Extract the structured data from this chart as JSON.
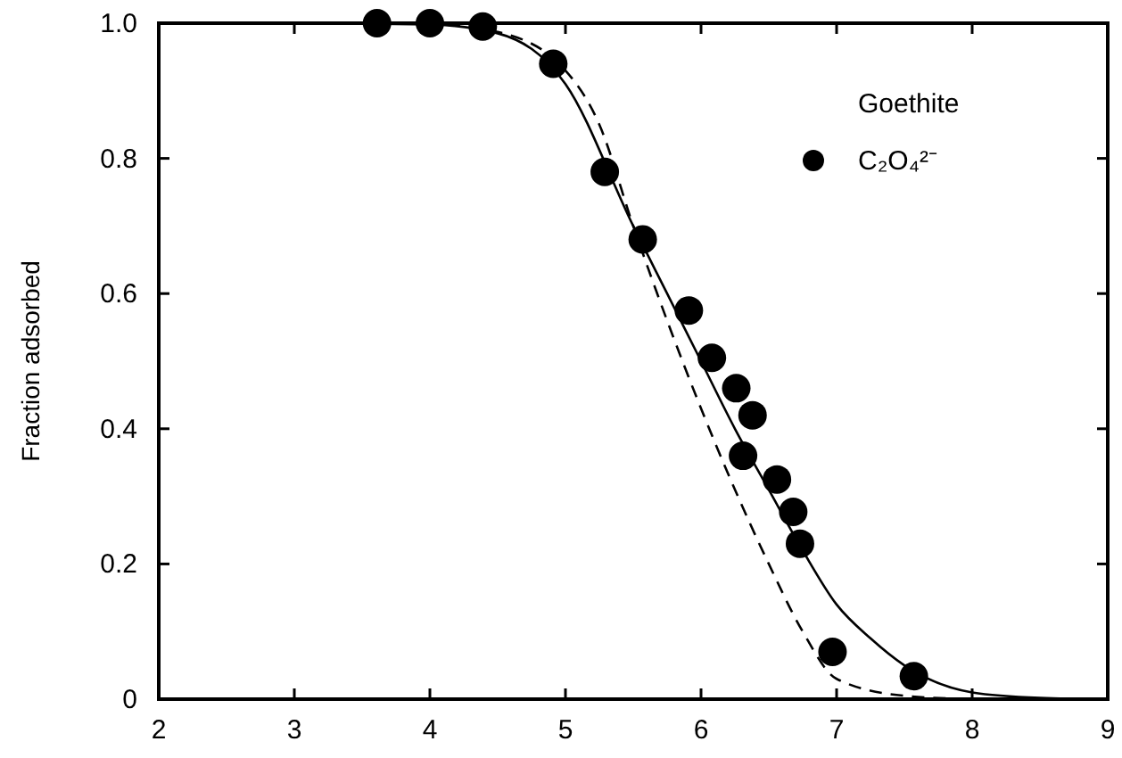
{
  "chart_data": {
    "type": "scatter",
    "ylabel": "Fraction adsorbed",
    "legend_title": "Goethite",
    "legend": "top right",
    "grid": false,
    "xlim": [
      2,
      9
    ],
    "xticks": [
      2,
      3,
      4,
      5,
      6,
      7,
      8,
      9
    ],
    "ylim": [
      0,
      1
    ],
    "yticks": [
      0,
      {
        "value": 0.2,
        "label": "0.2"
      },
      {
        "value": 0.4,
        "label": "0.4"
      },
      {
        "value": 0.6,
        "label": "0.6"
      },
      {
        "value": 0.8,
        "label": "0.8"
      },
      {
        "value": 1,
        "label": "1.0"
      }
    ],
    "series": [
      {
        "type": "line",
        "color": "#000000",
        "line_style": "solid",
        "marker": "none",
        "x": [
          2,
          3,
          4,
          4.5,
          5,
          5.5,
          5.75,
          6,
          6.25,
          6.5,
          6.75,
          7,
          7.25,
          7.5,
          8,
          8.5,
          9
        ],
        "values": [
          1,
          1,
          0.998,
          0.985,
          0.91,
          0.7,
          0.6,
          0.5,
          0.4,
          0.31,
          0.22,
          0.14,
          0.09,
          0.05,
          0.01,
          0.002,
          0
        ]
      },
      {
        "type": "line",
        "color": "#000000",
        "line_style": "dashed",
        "marker": "none",
        "x": [
          3.5,
          4,
          4.5,
          5,
          5.25,
          5.5,
          5.75,
          6,
          6.25,
          6.5,
          6.75,
          7,
          7.5,
          8
        ],
        "values": [
          1,
          0.999,
          0.987,
          0.93,
          0.85,
          0.7,
          0.56,
          0.43,
          0.31,
          0.2,
          0.1,
          0.03,
          0.005,
          0
        ]
      },
      {
        "name": "C₂O₄²⁻",
        "color": "#000000",
        "marker": "circle",
        "x": [
          3.61,
          4.0,
          4.39,
          4.91,
          5.29,
          5.57,
          5.91,
          6.08,
          6.26,
          6.38,
          6.31,
          6.56,
          6.68,
          6.73,
          6.97,
          7.57
        ],
        "values": [
          1.0,
          1.0,
          0.995,
          0.94,
          0.78,
          0.68,
          0.575,
          0.505,
          0.46,
          0.42,
          0.36,
          0.325,
          0.277,
          0.23,
          0.07,
          0.034
        ]
      }
    ]
  }
}
